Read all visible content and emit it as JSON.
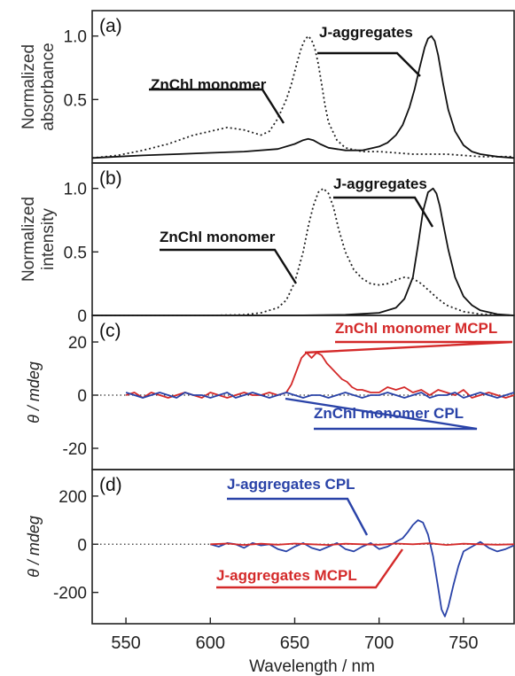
{
  "chart_data": [
    {
      "panel": "(a)",
      "type": "line",
      "ylabel_lines": [
        "Normalized",
        "absorbance"
      ],
      "ylim": [
        0,
        1.2
      ],
      "yticks": [
        0.5,
        1.0
      ],
      "ytick_labels": [
        "0.5",
        "1.0"
      ],
      "xlim": [
        530,
        780
      ],
      "series": [
        {
          "name": "ZnChl monomer",
          "style": "dotted",
          "color": "#222222",
          "x": [
            530,
            545,
            560,
            575,
            590,
            600,
            610,
            620,
            630,
            635,
            640,
            645,
            648,
            650,
            652,
            654,
            656,
            658,
            660,
            662,
            664,
            666,
            668,
            670,
            675,
            680,
            690,
            700,
            710,
            720,
            730,
            740,
            750,
            760,
            770,
            780
          ],
          "y": [
            0.04,
            0.06,
            0.1,
            0.15,
            0.22,
            0.25,
            0.28,
            0.26,
            0.22,
            0.25,
            0.35,
            0.5,
            0.62,
            0.72,
            0.82,
            0.91,
            0.97,
            1.0,
            0.97,
            0.9,
            0.78,
            0.62,
            0.45,
            0.32,
            0.18,
            0.12,
            0.09,
            0.09,
            0.08,
            0.07,
            0.07,
            0.07,
            0.06,
            0.05,
            0.05,
            0.05
          ]
        },
        {
          "name": "J-aggregates",
          "style": "solid",
          "color": "#111111",
          "x": [
            530,
            545,
            560,
            580,
            600,
            620,
            640,
            650,
            655,
            658,
            661,
            665,
            670,
            680,
            690,
            700,
            705,
            710,
            714,
            718,
            721,
            724,
            727,
            729,
            731,
            733,
            735,
            738,
            741,
            745,
            750,
            755,
            760,
            770,
            780
          ],
          "y": [
            0.04,
            0.05,
            0.06,
            0.07,
            0.08,
            0.09,
            0.11,
            0.15,
            0.18,
            0.19,
            0.18,
            0.15,
            0.12,
            0.1,
            0.1,
            0.13,
            0.16,
            0.22,
            0.3,
            0.44,
            0.58,
            0.75,
            0.91,
            0.98,
            1.0,
            0.96,
            0.85,
            0.62,
            0.42,
            0.25,
            0.14,
            0.09,
            0.07,
            0.05,
            0.04
          ]
        }
      ],
      "annotations": [
        "ZnChl monomer",
        "J-aggregates"
      ]
    },
    {
      "panel": "(b)",
      "type": "line",
      "ylabel_lines": [
        "Normalized",
        "intensity"
      ],
      "ylim": [
        0,
        1.2
      ],
      "yticks": [
        0,
        0.5,
        1.0
      ],
      "ytick_labels": [
        "0",
        "0.5",
        "1.0"
      ],
      "xlim": [
        530,
        780
      ],
      "series": [
        {
          "name": "ZnChl monomer",
          "style": "dotted",
          "color": "#222222",
          "x": [
            530,
            600,
            620,
            630,
            640,
            645,
            650,
            655,
            658,
            661,
            664,
            667,
            670,
            673,
            676,
            680,
            685,
            690,
            695,
            700,
            705,
            710,
            715,
            720,
            725,
            730,
            735,
            740,
            750,
            760,
            770,
            780
          ],
          "y": [
            0,
            0,
            0.005,
            0.02,
            0.06,
            0.12,
            0.26,
            0.5,
            0.7,
            0.86,
            0.97,
            1.0,
            0.96,
            0.85,
            0.68,
            0.5,
            0.36,
            0.29,
            0.25,
            0.24,
            0.25,
            0.28,
            0.3,
            0.29,
            0.25,
            0.19,
            0.13,
            0.08,
            0.03,
            0.01,
            0.005,
            0
          ]
        },
        {
          "name": "J-aggregates",
          "style": "solid",
          "color": "#111111",
          "x": [
            530,
            650,
            680,
            700,
            710,
            715,
            720,
            723,
            726,
            729,
            732,
            734,
            736,
            738,
            741,
            745,
            750,
            755,
            760,
            770,
            780
          ],
          "y": [
            0,
            0,
            0.005,
            0.02,
            0.06,
            0.13,
            0.3,
            0.55,
            0.82,
            0.97,
            1.0,
            0.96,
            0.86,
            0.72,
            0.52,
            0.3,
            0.15,
            0.08,
            0.04,
            0.01,
            0
          ]
        }
      ],
      "annotations": [
        "ZnChl monomer",
        "J-aggregates"
      ]
    },
    {
      "panel": "(c)",
      "type": "line",
      "ylabel": "θ / mdeg",
      "ylim": [
        -28,
        30
      ],
      "yticks": [
        -20,
        0,
        20
      ],
      "ytick_labels": [
        "-20",
        "0",
        "20"
      ],
      "xlim": [
        530,
        780
      ],
      "series": [
        {
          "name": "ZnChl monomer MCPL",
          "style": "solid",
          "color": "#d42a2a",
          "x": [
            550,
            555,
            560,
            565,
            570,
            575,
            580,
            585,
            590,
            595,
            600,
            605,
            610,
            615,
            620,
            625,
            630,
            635,
            640,
            645,
            648,
            651,
            654,
            657,
            660,
            663,
            666,
            669,
            672,
            675,
            678,
            681,
            684,
            687,
            690,
            695,
            700,
            705,
            710,
            715,
            720,
            725,
            730,
            735,
            740,
            745,
            750,
            755,
            760,
            765,
            770,
            775,
            780
          ],
          "y": [
            0,
            1,
            -1,
            1,
            0,
            -1,
            0,
            1,
            0,
            -1,
            1,
            0,
            -1,
            0,
            1,
            0,
            0,
            1,
            0,
            1,
            4,
            9,
            14,
            16,
            14,
            16,
            15,
            12,
            10,
            8,
            6,
            5,
            3,
            2,
            2,
            1,
            1,
            3,
            2,
            3,
            1,
            2,
            0,
            2,
            1,
            0,
            2,
            -1,
            0,
            1,
            0,
            -1,
            0
          ]
        },
        {
          "name": "ZnChl monomer CPL",
          "style": "solid",
          "color": "#2a43a8",
          "x": [
            550,
            555,
            560,
            565,
            570,
            575,
            580,
            585,
            590,
            595,
            600,
            605,
            610,
            615,
            620,
            625,
            630,
            635,
            640,
            645,
            650,
            655,
            660,
            665,
            670,
            675,
            680,
            685,
            690,
            695,
            700,
            705,
            710,
            715,
            720,
            725,
            730,
            735,
            740,
            745,
            750,
            755,
            760,
            765,
            770,
            775,
            780
          ],
          "y": [
            1,
            0,
            -1,
            0,
            1,
            0,
            -1,
            1,
            0,
            0,
            -1,
            0,
            1,
            -1,
            0,
            1,
            0,
            -1,
            0,
            1,
            0,
            -1,
            0,
            0,
            -1,
            0,
            1,
            0,
            -1,
            0,
            0,
            1,
            0,
            -1,
            0,
            1,
            -1,
            0,
            0,
            1,
            -1,
            0,
            1,
            0,
            -1,
            0,
            1
          ]
        }
      ],
      "annotations": [
        "ZnChl monomer MCPL",
        "ZnChl monomer CPL"
      ]
    },
    {
      "panel": "(d)",
      "type": "line",
      "ylabel": "θ / mdeg",
      "ylim": [
        -330,
        310
      ],
      "yticks": [
        -200,
        0,
        200
      ],
      "ytick_labels": [
        "-200",
        "0",
        "200"
      ],
      "xlim": [
        530,
        780
      ],
      "xticks": [
        550,
        600,
        650,
        700,
        750
      ],
      "xlabel": "Wavelength / nm",
      "series": [
        {
          "name": "J-aggregates CPL",
          "style": "solid",
          "color": "#2a43a8",
          "x": [
            600,
            605,
            610,
            615,
            620,
            625,
            630,
            635,
            640,
            645,
            650,
            655,
            660,
            665,
            670,
            675,
            680,
            685,
            690,
            695,
            700,
            705,
            710,
            714,
            717,
            720,
            723,
            726,
            729,
            732,
            735,
            737,
            739,
            741,
            744,
            747,
            750,
            755,
            760,
            765,
            770,
            775,
            780
          ],
          "y": [
            0,
            -10,
            5,
            0,
            -15,
            5,
            -5,
            0,
            -20,
            -30,
            -10,
            5,
            -15,
            -25,
            -10,
            5,
            -20,
            -30,
            -10,
            5,
            -20,
            -10,
            10,
            25,
            50,
            80,
            100,
            90,
            40,
            -50,
            -180,
            -270,
            -300,
            -260,
            -170,
            -90,
            -30,
            -10,
            10,
            -15,
            -30,
            -20,
            -5
          ]
        },
        {
          "name": "J-aggregates MCPL",
          "style": "solid",
          "color": "#d42a2a",
          "x": [
            600,
            610,
            620,
            630,
            640,
            650,
            660,
            670,
            680,
            690,
            700,
            710,
            720,
            730,
            740,
            750,
            760,
            770,
            780
          ],
          "y": [
            0,
            3,
            -3,
            2,
            -2,
            3,
            0,
            -3,
            2,
            0,
            -2,
            3,
            0,
            4,
            -3,
            2,
            0,
            -2,
            0
          ]
        }
      ],
      "annotations": [
        "J-aggregates CPL",
        "J-aggregates MCPL"
      ]
    }
  ]
}
